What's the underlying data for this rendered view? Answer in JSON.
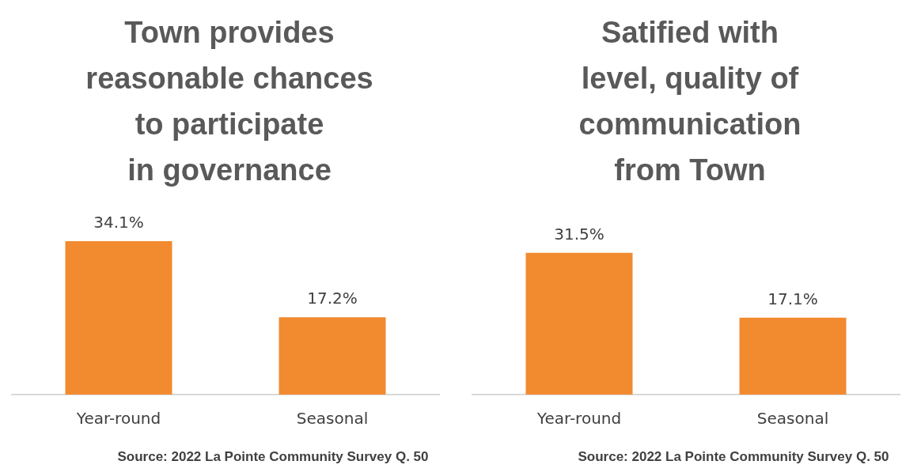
{
  "chart_data": [
    {
      "type": "bar",
      "title": "Town provides reasonable chances to participate in governance",
      "categories": [
        "Year-round",
        "Seasonal"
      ],
      "values": [
        34.1,
        17.2
      ],
      "value_labels": [
        "34.1%",
        "17.2%"
      ],
      "color": "#f28a30",
      "annotations": [
        "Source: 2022 La Pointe Community Survey Q. 50"
      ]
    },
    {
      "type": "bar",
      "title": "Satified with level, quality of communication from Town",
      "categories": [
        "Year-round",
        "Seasonal"
      ],
      "values": [
        31.5,
        17.1
      ],
      "value_labels": [
        "31.5%",
        "17.1%"
      ],
      "color": "#f28a30",
      "annotations": [
        "Source: 2022 La Pointe Community Survey Q. 50"
      ]
    }
  ]
}
